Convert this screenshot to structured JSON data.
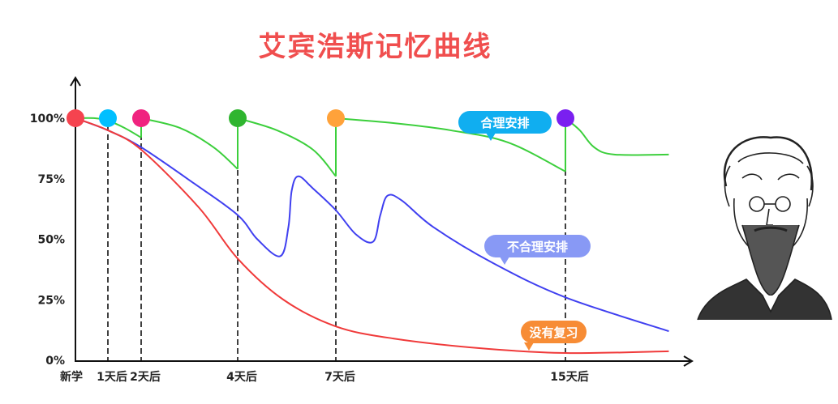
{
  "title": "艾宾浩斯记忆曲线",
  "chart_data": {
    "type": "line",
    "title": "艾宾浩斯记忆曲线",
    "xlabel": "",
    "ylabel": "",
    "x_ticks": [
      {
        "day": 0,
        "label": "新学"
      },
      {
        "day": 1,
        "label": "1天后"
      },
      {
        "day": 2,
        "label": "2天后"
      },
      {
        "day": 4,
        "label": "4天后"
      },
      {
        "day": 7,
        "label": "7天后"
      },
      {
        "day": 15,
        "label": "15天后"
      }
    ],
    "y_ticks": [
      {
        "value": 0,
        "label": "0%"
      },
      {
        "value": 25,
        "label": "25%"
      },
      {
        "value": 50,
        "label": "50%"
      },
      {
        "value": 75,
        "label": "75%"
      },
      {
        "value": 100,
        "label": "100%"
      }
    ],
    "ylim": [
      0,
      100
    ],
    "xlim": [
      0,
      18.6
    ],
    "grid": false,
    "series": [
      {
        "name": "合理安排",
        "color": "#3ccf3c",
        "label_color": "#10aef0",
        "segments": [
          [
            [
              0,
              100
            ],
            [
              0.6,
              100
            ],
            [
              1,
              99
            ],
            [
              1.5,
              96
            ],
            [
              2,
              92
            ]
          ],
          [
            [
              2,
              100
            ],
            [
              2.8,
              96
            ],
            [
              3.5,
              88
            ],
            [
              4,
              79
            ]
          ],
          [
            [
              4,
              100
            ],
            [
              5.2,
              95
            ],
            [
              6.3,
              87
            ],
            [
              7,
              76
            ]
          ],
          [
            [
              7,
              100
            ],
            [
              9,
              98
            ],
            [
              11,
              95
            ],
            [
              13,
              90
            ],
            [
              15,
              78
            ]
          ],
          [
            [
              15,
              100
            ],
            [
              15.5,
              95
            ],
            [
              16,
              88
            ],
            [
              16.7,
              85
            ],
            [
              18.6,
              85
            ]
          ]
        ]
      },
      {
        "name": "不合理安排",
        "color": "#4040f0",
        "label_color": "#8899f5",
        "points": [
          [
            0,
            100
          ],
          [
            1,
            95
          ],
          [
            2,
            88
          ],
          [
            3.1,
            73
          ],
          [
            4,
            60
          ],
          [
            4.6,
            50
          ],
          [
            5.3,
            43
          ],
          [
            5.55,
            55
          ],
          [
            5.65,
            70
          ],
          [
            5.85,
            76
          ],
          [
            6.3,
            71
          ],
          [
            7,
            62
          ],
          [
            7.7,
            52
          ],
          [
            8.3,
            49
          ],
          [
            8.55,
            60
          ],
          [
            8.8,
            68
          ],
          [
            9.3,
            66
          ],
          [
            10.4,
            55
          ],
          [
            12.5,
            40
          ],
          [
            15,
            26
          ],
          [
            18.6,
            12
          ]
        ]
      },
      {
        "name": "没有复习",
        "color": "#f03a3a",
        "label_color": "#f78c35",
        "points": [
          [
            0,
            100
          ],
          [
            1,
            95
          ],
          [
            2,
            87
          ],
          [
            3.2,
            63
          ],
          [
            4,
            42
          ],
          [
            5.4,
            25
          ],
          [
            7,
            14
          ],
          [
            9,
            9
          ],
          [
            12,
            5
          ],
          [
            15,
            3
          ],
          [
            18.6,
            3.7
          ]
        ]
      }
    ],
    "review_markers": [
      {
        "day": 0,
        "color": "#f5434f"
      },
      {
        "day": 1,
        "color": "#00bfff"
      },
      {
        "day": 2,
        "color": "#f0237f"
      },
      {
        "day": 4,
        "color": "#2fb52f"
      },
      {
        "day": 7,
        "color": "#ffa23a"
      },
      {
        "day": 15,
        "color": "#7a1ff0"
      }
    ]
  }
}
